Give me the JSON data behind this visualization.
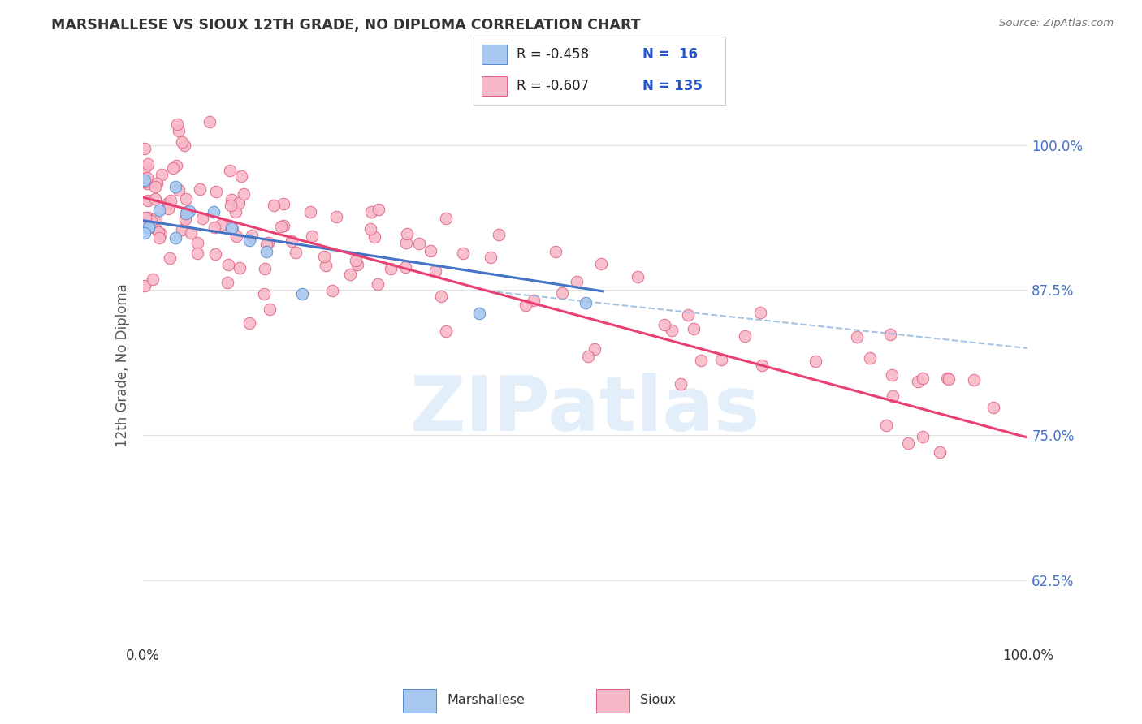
{
  "title": "MARSHALLESE VS SIOUX 12TH GRADE, NO DIPLOMA CORRELATION CHART",
  "source": "Source: ZipAtlas.com",
  "ylabel": "12th Grade, No Diploma",
  "xlim": [
    0.0,
    1.0
  ],
  "ylim": [
    0.57,
    1.05
  ],
  "yticks": [
    0.625,
    0.75,
    0.875,
    1.0
  ],
  "ytick_labels": [
    "62.5%",
    "75.0%",
    "87.5%",
    "100.0%"
  ],
  "marshallese_color": "#a8c8f0",
  "marshallese_edge_color": "#5588cc",
  "sioux_color": "#f8b8c8",
  "sioux_edge_color": "#e06080",
  "marshallese_line_color": "#4472c4",
  "sioux_line_color": "#e84070",
  "dash_color": "#9bbde0",
  "background_color": "#ffffff",
  "grid_color": "#e0e0e0",
  "watermark_text": "ZIPatlas",
  "watermark_color": "#d0e4f5",
  "title_color": "#333333",
  "axis_label_color": "#555555",
  "right_tick_color": "#4472c4",
  "legend_R1": "R = -0.458",
  "legend_N1": "N =  16",
  "legend_R2": "R = -0.607",
  "legend_N2": "N = 135",
  "marsh_seed": 42,
  "sioux_seed": 99,
  "marsh_n": 16,
  "sioux_n": 135,
  "marsh_line_x0": 0.0,
  "marsh_line_x1": 0.52,
  "marsh_line_y0": 0.935,
  "marsh_line_y1": 0.874,
  "sioux_line_x0": 0.0,
  "sioux_line_x1": 1.0,
  "sioux_line_y0": 0.955,
  "sioux_line_y1": 0.748,
  "dash_line_x0": 0.38,
  "dash_line_x1": 1.0,
  "dash_line_y0": 0.875,
  "dash_line_y1": 0.825
}
